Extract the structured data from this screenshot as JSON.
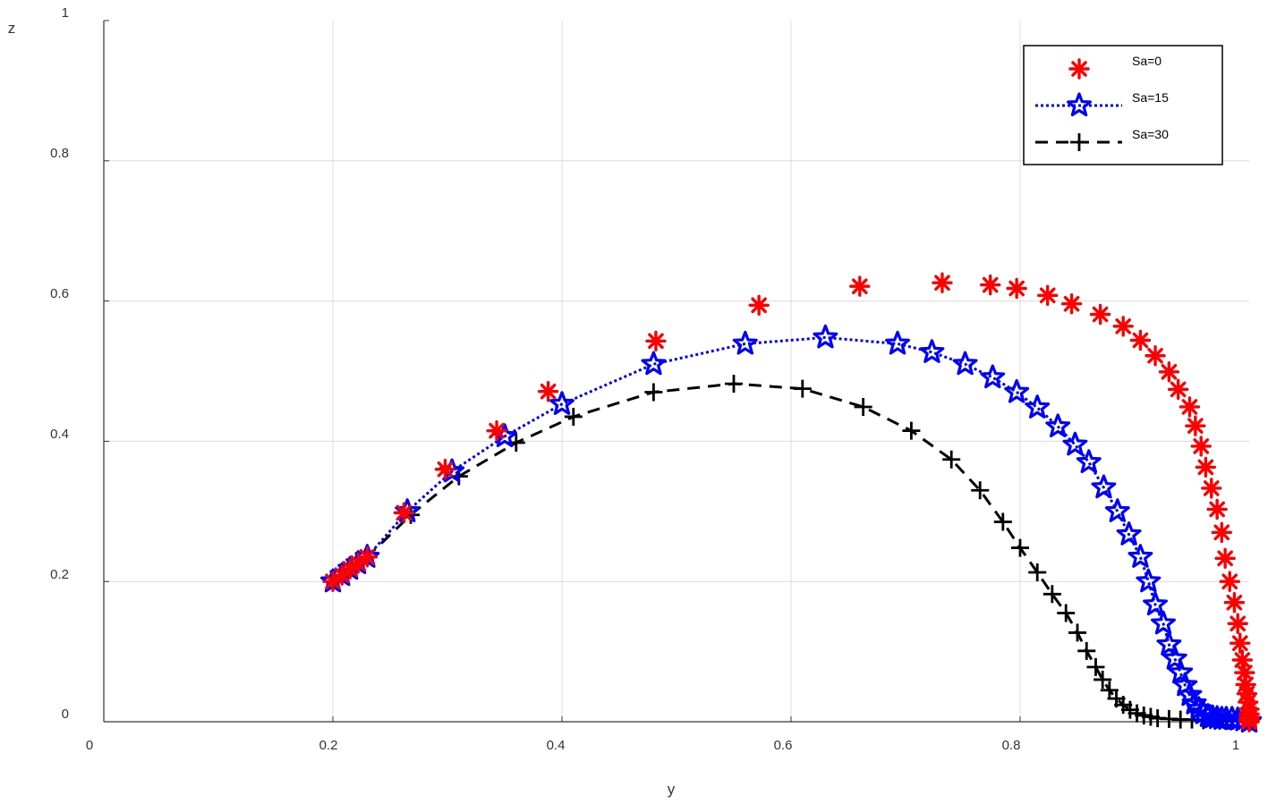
{
  "chart_data": {
    "type": "line",
    "title": "",
    "xlabel": "y",
    "ylabel": "z",
    "xlim": [
      0,
      1
    ],
    "ylim": [
      0,
      1
    ],
    "grid": true,
    "x_ticks": [
      "0",
      "0.2",
      "0.4",
      "0.6",
      "0.8",
      "1"
    ],
    "y_ticks": [
      "0",
      "0.2",
      "0.4",
      "0.6",
      "0.8",
      "1"
    ],
    "legend_position": "top-right",
    "series": [
      {
        "name": "Sa=0",
        "color": "#ff0000",
        "marker": "asterisk",
        "line": "none",
        "x": [
          0.2,
          0.208,
          0.215,
          0.222,
          0.23,
          0.262,
          0.298,
          0.343,
          0.388,
          0.482,
          0.572,
          0.66,
          0.732,
          0.774,
          0.797,
          0.824,
          0.845,
          0.87,
          0.89,
          0.905,
          0.918,
          0.93,
          0.938,
          0.948,
          0.953,
          0.958,
          0.962,
          0.967,
          0.972,
          0.976,
          0.979,
          0.983,
          0.987,
          0.99,
          0.992,
          0.994,
          0.996,
          0.997,
          0.998,
          0.999,
          1.0,
          1.0,
          1.0,
          1.0,
          1.0,
          1.0,
          1.0
        ],
        "y": [
          0.2,
          0.209,
          0.218,
          0.226,
          0.235,
          0.298,
          0.36,
          0.415,
          0.471,
          0.543,
          0.594,
          0.621,
          0.626,
          0.623,
          0.618,
          0.608,
          0.596,
          0.581,
          0.564,
          0.544,
          0.522,
          0.499,
          0.474,
          0.449,
          0.422,
          0.393,
          0.363,
          0.333,
          0.303,
          0.27,
          0.233,
          0.2,
          0.17,
          0.14,
          0.112,
          0.088,
          0.07,
          0.053,
          0.04,
          0.028,
          0.018,
          0.011,
          0.006,
          0.003,
          0.001,
          0.0,
          0.0
        ]
      },
      {
        "name": "Sa=15",
        "color": "#0000ff",
        "marker": "pentagram",
        "line": "dotted",
        "x": [
          0.2,
          0.208,
          0.215,
          0.222,
          0.23,
          0.265,
          0.304,
          0.35,
          0.4,
          0.48,
          0.56,
          0.63,
          0.693,
          0.723,
          0.752,
          0.776,
          0.797,
          0.815,
          0.833,
          0.848,
          0.86,
          0.873,
          0.885,
          0.895,
          0.905,
          0.912,
          0.918,
          0.925,
          0.93,
          0.935,
          0.94,
          0.944,
          0.948,
          0.952,
          0.956,
          0.96,
          0.964,
          0.968,
          0.972,
          0.976,
          0.98,
          0.985,
          0.99,
          0.995,
          1.0,
          1.0
        ],
        "y": [
          0.2,
          0.209,
          0.218,
          0.226,
          0.235,
          0.3,
          0.357,
          0.407,
          0.453,
          0.51,
          0.539,
          0.548,
          0.539,
          0.527,
          0.51,
          0.491,
          0.47,
          0.448,
          0.421,
          0.395,
          0.37,
          0.334,
          0.3,
          0.267,
          0.235,
          0.2,
          0.167,
          0.14,
          0.11,
          0.09,
          0.07,
          0.052,
          0.038,
          0.026,
          0.018,
          0.012,
          0.008,
          0.006,
          0.005,
          0.004,
          0.004,
          0.004,
          0.003,
          0.002,
          0.001,
          0.0
        ]
      },
      {
        "name": "Sa=30",
        "color": "#000000",
        "marker": "plus",
        "line": "dashed",
        "x": [
          0.2,
          0.208,
          0.215,
          0.222,
          0.23,
          0.268,
          0.31,
          0.36,
          0.41,
          0.48,
          0.55,
          0.61,
          0.663,
          0.705,
          0.74,
          0.765,
          0.785,
          0.8,
          0.815,
          0.828,
          0.84,
          0.85,
          0.858,
          0.866,
          0.872,
          0.878,
          0.884,
          0.89,
          0.896,
          0.902,
          0.908,
          0.914,
          0.92,
          0.93,
          0.94,
          0.95,
          0.96,
          0.97,
          0.98,
          0.99,
          1.0
        ],
        "y": [
          0.2,
          0.209,
          0.218,
          0.226,
          0.235,
          0.295,
          0.35,
          0.398,
          0.435,
          0.47,
          0.482,
          0.475,
          0.449,
          0.415,
          0.374,
          0.33,
          0.285,
          0.248,
          0.213,
          0.182,
          0.155,
          0.127,
          0.101,
          0.078,
          0.06,
          0.045,
          0.033,
          0.024,
          0.017,
          0.012,
          0.009,
          0.007,
          0.005,
          0.004,
          0.003,
          0.003,
          0.002,
          0.002,
          0.001,
          0.001,
          0.0
        ]
      }
    ]
  }
}
